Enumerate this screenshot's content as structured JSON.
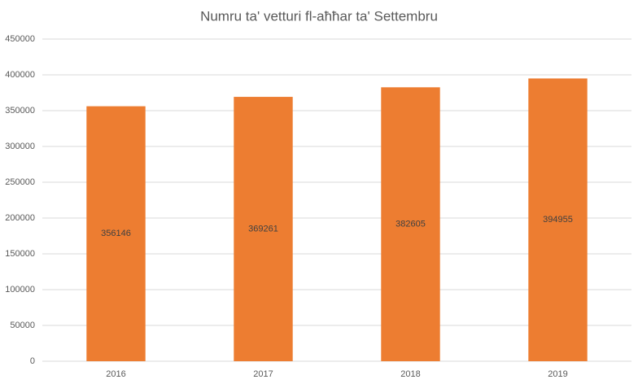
{
  "chart_data": {
    "type": "bar",
    "title": "Numru ta' vetturi fl-aħħar ta' Settembru",
    "categories": [
      "2016",
      "2017",
      "2018",
      "2019"
    ],
    "values": [
      356146,
      369261,
      382605,
      394955
    ],
    "color": "#ed7d31",
    "ylim": [
      0,
      450000
    ],
    "yticks": [
      0,
      50000,
      100000,
      150000,
      200000,
      250000,
      300000,
      350000,
      400000,
      450000
    ],
    "grid": true
  }
}
